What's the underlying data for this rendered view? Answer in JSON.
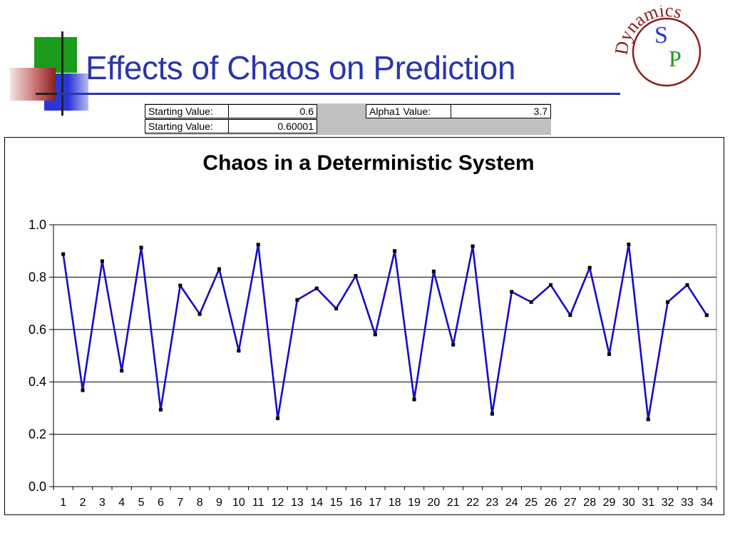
{
  "slide": {
    "title": "Effects of Chaos on Prediction",
    "logo_text": {
      "s": "S",
      "p": "P",
      "ring": "Dynamics"
    }
  },
  "params": {
    "start1_label": "Starting Value:",
    "start1_value": "0.6",
    "start2_label": "Starting Value:",
    "start2_value": "0.60001",
    "alpha_label": "Alpha1 Value:",
    "alpha_value": "3.7"
  },
  "colors": {
    "title": "#2b36a8",
    "series_red": "#e02020",
    "series_blue": "#1010d0",
    "marker_black": "#000000",
    "marker_grey": "#b0b0b0"
  },
  "chart_data": {
    "type": "line",
    "title": "Chaos in a Deterministic System",
    "xlabel": "",
    "ylabel": "",
    "x": [
      1,
      2,
      3,
      4,
      5,
      6,
      7,
      8,
      9,
      10,
      11,
      12,
      13,
      14,
      15,
      16,
      17,
      18,
      19,
      20,
      21,
      22,
      23,
      24,
      25,
      26,
      27,
      28,
      29,
      30,
      31,
      32,
      33,
      34
    ],
    "ylim": [
      0,
      1.0
    ],
    "yticks": [
      "0.0",
      "0.2",
      "0.4",
      "0.6",
      "0.8",
      "1.0"
    ],
    "grid": true,
    "legend": "none",
    "series": [
      {
        "color": "#e02020",
        "marker_color": "#b0b0b0",
        "values": [
          0.888,
          0.368,
          0.861,
          0.443,
          0.913,
          0.294,
          0.768,
          0.659,
          0.831,
          0.519,
          0.924,
          0.261,
          0.713,
          0.757,
          0.68,
          0.805,
          0.581,
          0.9,
          0.333,
          0.822,
          0.542,
          0.918,
          0.278,
          0.744,
          0.705,
          0.77,
          0.655,
          0.836,
          0.506,
          0.925,
          0.257,
          0.705,
          0.77,
          0.655
        ]
      },
      {
        "color": "#1010d0",
        "marker_color": "#000000",
        "values": [
          0.888,
          0.368,
          0.861,
          0.443,
          0.913,
          0.294,
          0.768,
          0.659,
          0.831,
          0.519,
          0.924,
          0.261,
          0.713,
          0.757,
          0.68,
          0.805,
          0.581,
          0.9,
          0.333,
          0.822,
          0.542,
          0.918,
          0.278,
          0.744,
          0.705,
          0.77,
          0.655,
          0.836,
          0.506,
          0.925,
          0.257,
          0.705,
          0.77,
          0.655
        ]
      }
    ]
  }
}
